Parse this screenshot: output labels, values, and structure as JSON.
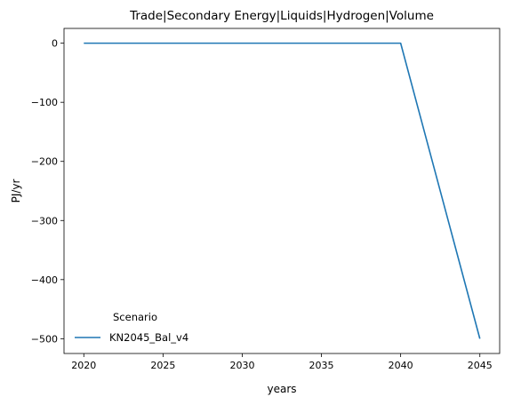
{
  "chart_data": {
    "type": "line",
    "title": "Trade|Secondary Energy|Liquids|Hydrogen|Volume",
    "xlabel": "years",
    "ylabel": "PJ/yr",
    "x": [
      2020,
      2040,
      2045
    ],
    "series": [
      {
        "name": "KN2045_Bal_v4",
        "values": [
          0,
          0,
          -500
        ],
        "color": "#1f77b4"
      }
    ],
    "xticks": [
      2020,
      2025,
      2030,
      2035,
      2040,
      2045
    ],
    "yticks": [
      0,
      -100,
      -200,
      -300,
      -400,
      -500
    ],
    "ytick_labels": [
      "0",
      "−100",
      "−200",
      "−300",
      "−400",
      "−500"
    ],
    "xlim": [
      2018.75,
      2046.25
    ],
    "ylim": [
      -525,
      25
    ],
    "grid": false,
    "legend": {
      "title": "Scenario",
      "placement": "lower-left"
    }
  }
}
